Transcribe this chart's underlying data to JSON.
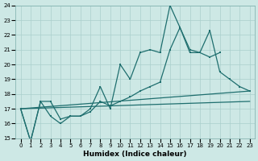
{
  "xlabel": "Humidex (Indice chaleur)",
  "xlim": [
    -0.5,
    23.5
  ],
  "ylim": [
    15,
    24
  ],
  "yticks": [
    15,
    16,
    17,
    18,
    19,
    20,
    21,
    22,
    23,
    24
  ],
  "xticks": [
    0,
    1,
    2,
    3,
    4,
    5,
    6,
    7,
    8,
    9,
    10,
    11,
    12,
    13,
    14,
    15,
    16,
    17,
    18,
    19,
    20,
    21,
    22,
    23
  ],
  "background_color": "#cde8e5",
  "grid_color": "#aacfcc",
  "line_color": "#1e6e6e",
  "line1_x": [
    0,
    1,
    2,
    3,
    4,
    5,
    6,
    7,
    8,
    9,
    10,
    11,
    12,
    13,
    14,
    15,
    16,
    17,
    18,
    19,
    20,
    21,
    22,
    23
  ],
  "line1_y": [
    17.0,
    14.8,
    17.5,
    17.5,
    16.3,
    16.5,
    16.5,
    17.0,
    18.5,
    17.0,
    20.0,
    19.0,
    20.8,
    21.0,
    20.8,
    24.0,
    22.5,
    20.8,
    20.8,
    22.3,
    19.5,
    19.0,
    18.5,
    18.2
  ],
  "line2_x": [
    0,
    1,
    2,
    3,
    4,
    5,
    6,
    7,
    8,
    9,
    10,
    11,
    12,
    13,
    14,
    15,
    16,
    17,
    18,
    19,
    20
  ],
  "line2_y": [
    17.0,
    14.8,
    17.5,
    16.5,
    16.0,
    16.5,
    16.5,
    16.8,
    17.5,
    17.2,
    17.5,
    17.8,
    18.2,
    18.5,
    18.8,
    21.0,
    22.5,
    21.0,
    20.8,
    20.5,
    20.8
  ],
  "line3_x": [
    0,
    23
  ],
  "line3_y": [
    17.0,
    18.2
  ],
  "line4_x": [
    0,
    23
  ],
  "line4_y": [
    17.0,
    17.5
  ]
}
